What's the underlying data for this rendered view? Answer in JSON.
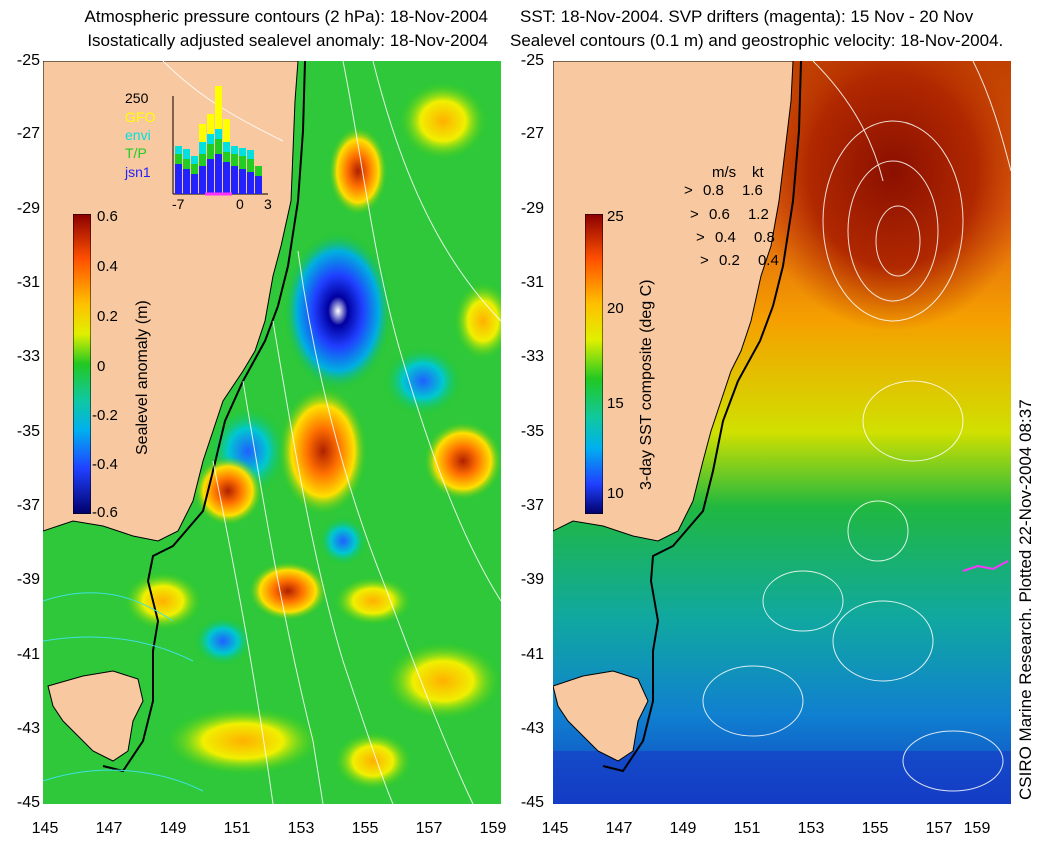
{
  "left_panel": {
    "title_line1": "Atmospheric pressure contours (2 hPa): 18-Nov-2004",
    "title_line2": "Isostatically adjusted sealevel anomaly: 18-Nov-2004",
    "colorbar_label": "Sealevel anomaly (m)",
    "colorbar_ticks": [
      "0.6",
      "0.4",
      "0.2",
      "0",
      "-0.2",
      "-0.4",
      "-0.6"
    ],
    "inset": {
      "ymax_label": "250",
      "legend": [
        {
          "name": "GFO",
          "color": "#ffff00"
        },
        {
          "name": "envi",
          "color": "#00e0e0"
        },
        {
          "name": "T/P",
          "color": "#22cc22"
        },
        {
          "name": "jsn1",
          "color": "#2222ff"
        }
      ],
      "x_ticks": [
        "-7",
        "0",
        "3"
      ]
    }
  },
  "right_panel": {
    "title_line1": "SST: 18-Nov-2004. SVP drifters (magenta): 15 Nov - 20 Nov",
    "title_line2": "Sealevel contours (0.1 m) and geostrophic velocity: 18-Nov-2004.",
    "colorbar_label": "3-day SST composite (deg C)",
    "colorbar_ticks": [
      "25",
      "20",
      "15",
      "10"
    ],
    "speed_legend": {
      "header_ms": "m/s",
      "header_kt": "kt",
      "rows": [
        {
          "ms": "0.8",
          "kt": "1.6"
        },
        {
          "ms": "0.6",
          "kt": "1.2"
        },
        {
          "ms": "0.4",
          "kt": "0.8"
        },
        {
          "ms": "0.2",
          "kt": "0.4"
        }
      ]
    }
  },
  "axes": {
    "y_ticks": [
      "-25",
      "-27",
      "-29",
      "-31",
      "-33",
      "-35",
      "-37",
      "-39",
      "-41",
      "-43",
      "-45"
    ],
    "x_ticks": [
      "145",
      "147",
      "149",
      "151",
      "153",
      "155",
      "157",
      "159"
    ]
  },
  "credit": "CSIRO Marine Research. Plotted 22-Nov-2004 08:37",
  "colors": {
    "land": "#f8c8a0",
    "sla_green": "#22c822",
    "coastline": "#000000"
  }
}
